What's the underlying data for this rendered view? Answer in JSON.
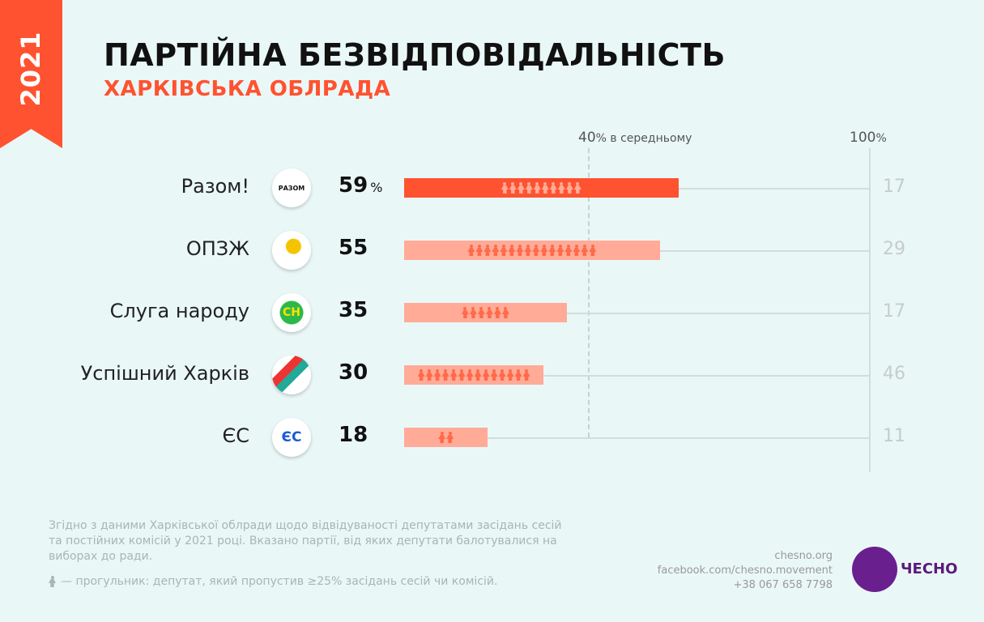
{
  "year": "2021",
  "title": "ПАРТІЙНА БЕЗВІДПОВІДАЛЬНІСТЬ",
  "subtitle": "ХАРКІВСЬКА ОБЛРАДА",
  "chart_data": {
    "type": "bar",
    "orientation": "horizontal",
    "xlim": [
      0,
      100
    ],
    "reference_lines": [
      {
        "value": 40,
        "label_value": "40",
        "label_unit": "%",
        "label_text": "в середньому"
      },
      {
        "value": 100,
        "label_value": "100",
        "label_unit": "%"
      }
    ],
    "categories": [
      "Разом!",
      "ОПЗЖ",
      "Слуга народу",
      "Успішний Харків",
      "ЄС"
    ],
    "values": [
      59,
      55,
      35,
      30,
      18
    ],
    "value_labels": [
      "59",
      "55",
      "35",
      "30",
      "18"
    ],
    "unit": "%",
    "truants": [
      10,
      16,
      6,
      14,
      2
    ],
    "totals": [
      17,
      29,
      17,
      46,
      11
    ],
    "highlight_index": 0,
    "colors": {
      "highlight": "#ff5230",
      "bar": "#ffab98",
      "icon_highlight": "#ffab98",
      "icon": "#ff6a4a"
    }
  },
  "logos": [
    "РАЗОМ",
    "",
    "СН",
    "",
    "ЄС"
  ],
  "note": "Згідно з даними Харківської облради щодо відвідуваності депутатами засідань сесій та постійних комісій у 2021 році. Вказано партії, від яких депутати балотувалися на виборах до ради.",
  "legend": "— прогульник: депутат, який пропустив ≥25% засідань сесій чи комісій.",
  "contacts": [
    "chesno.org",
    "facebook.com/chesno.movement",
    "+38 067 658 7798"
  ],
  "brand": "ЧЕСНО"
}
